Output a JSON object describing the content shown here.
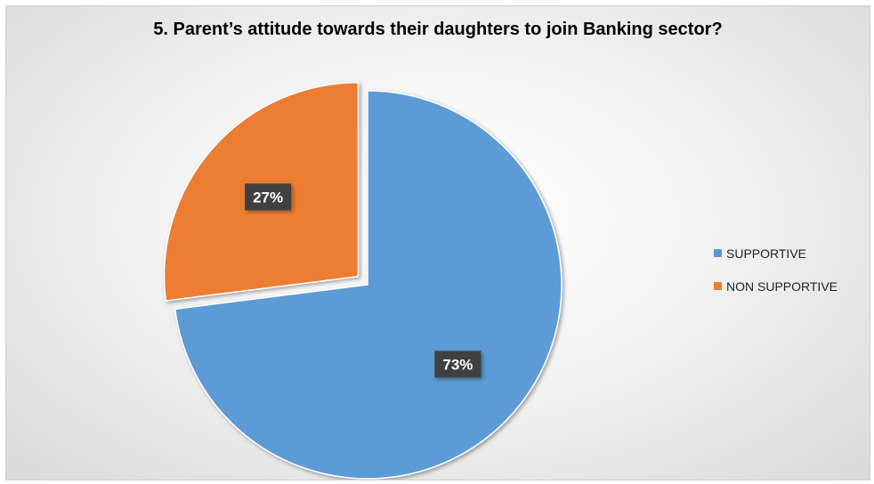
{
  "chart_data": {
    "type": "pie",
    "title": "5. Parent’s attitude towards their daughters to join Banking sector?",
    "categories": [
      "SUPPORTIVE",
      "NON SUPPORTIVE"
    ],
    "values": [
      73,
      27
    ],
    "data_labels": [
      "73%",
      "27%"
    ],
    "colors": [
      "#5B9BD5",
      "#ED7D31"
    ],
    "exploded": [
      "NON SUPPORTIVE"
    ],
    "legend_position": "right"
  }
}
